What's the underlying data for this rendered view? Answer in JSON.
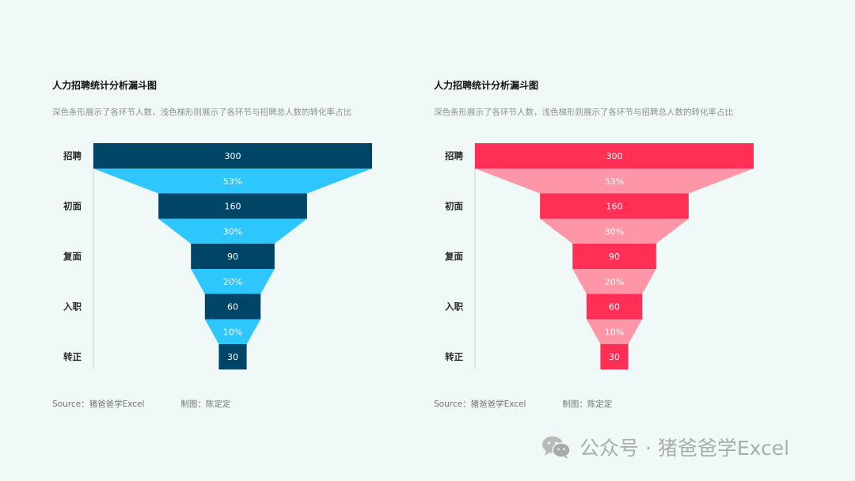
{
  "chart_data": [
    {
      "type": "funnel",
      "title": "人力招聘统计分析漏斗图",
      "subtitle": "深色条形展示了各环节人数，浅色梯形则展示了各环节与招聘总人数的转化率占比",
      "categories": [
        "招聘",
        "初面",
        "复面",
        "入职",
        "转正"
      ],
      "values": [
        300,
        160,
        90,
        60,
        30
      ],
      "conversion_rates": [
        "53%",
        "30%",
        "20%",
        "10%"
      ],
      "colors": {
        "bar": "#004566",
        "trapezoid": "#2ec6ff",
        "bar_text": "#ffffff",
        "rate_text": "#ffffff"
      }
    },
    {
      "type": "funnel",
      "title": "人力招聘统计分析漏斗图",
      "subtitle": "深色条形展示了各环节人数，浅色梯形则展示了各环节与招聘总人数的转化率占比",
      "categories": [
        "招聘",
        "初面",
        "复面",
        "入职",
        "转正"
      ],
      "values": [
        300,
        160,
        90,
        60,
        30
      ],
      "conversion_rates": [
        "53%",
        "30%",
        "20%",
        "10%"
      ],
      "colors": {
        "bar": "#ff2f55",
        "trapezoid": "#ff96a8",
        "bar_text": "#ffffff",
        "rate_text": "#ffffff"
      }
    }
  ],
  "footer": {
    "source": "Source：猪爸爸学Excel",
    "author": "制图：陈定定"
  },
  "watermark": {
    "icon": "wechat-icon",
    "text": "公众号 · 猪爸爸学Excel"
  }
}
